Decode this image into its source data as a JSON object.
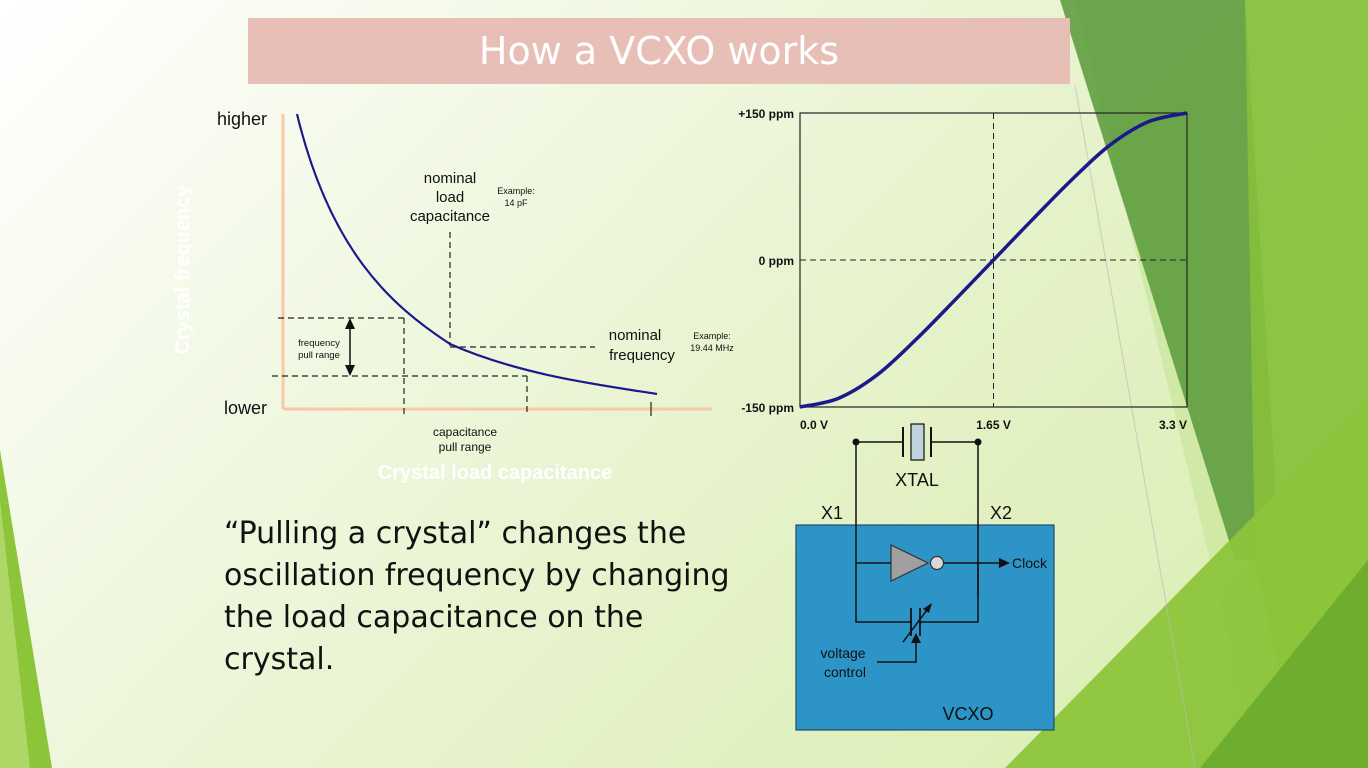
{
  "slide": {
    "title": "How a VCXO works",
    "body_text": "“Pulling a crystal” changes the oscillation frequency by changing the load capacitance on the crystal."
  },
  "left_chart": {
    "y_axis_label": "Crystal frequency",
    "x_axis_label": "Crystal load capacitance",
    "y_high_label": "higher",
    "y_low_label": "lower",
    "nominal_load": {
      "lines": [
        "nominal",
        "load",
        "capacitance"
      ],
      "example": [
        "Example:",
        "14 pF"
      ]
    },
    "nominal_freq": {
      "lines": [
        "nominal",
        "frequency"
      ],
      "example": [
        "Example:",
        "19.44 MHz"
      ]
    },
    "freq_pull_range": [
      "frequency",
      "pull range"
    ],
    "cap_pull_range": [
      "capacitance",
      "pull range"
    ]
  },
  "chart_data": {
    "type": "line",
    "x_tick_labels": [
      "0.0 V",
      "1.65 V",
      "3.3 V"
    ],
    "y_tick_labels": [
      "+150 ppm",
      "0 ppm",
      "-150 ppm"
    ],
    "x": [
      0,
      0.33,
      0.66,
      0.99,
      1.32,
      1.65,
      1.98,
      2.31,
      2.64,
      2.97,
      3.3
    ],
    "y": [
      -150,
      -141,
      -117,
      -81,
      -41,
      0,
      41,
      81,
      117,
      141,
      150
    ],
    "xlim": [
      0,
      3.3
    ],
    "ylim": [
      -150,
      150
    ],
    "grid": false,
    "reference_lines": {
      "x": 1.65,
      "y": 0
    }
  },
  "circuit": {
    "xtal_label": "XTAL",
    "x1_label": "X1",
    "x2_label": "X2",
    "clock_label": "Clock",
    "voltage_control": [
      "voltage",
      "control"
    ],
    "vcxo_label": "VCXO"
  },
  "colors": {
    "title_bg": "#e8bfb6",
    "curve": "#1a1a8c",
    "axis": "#f7c9a4",
    "vcxo_box": "#2d94c8",
    "accent_green": "#8cc43a"
  }
}
